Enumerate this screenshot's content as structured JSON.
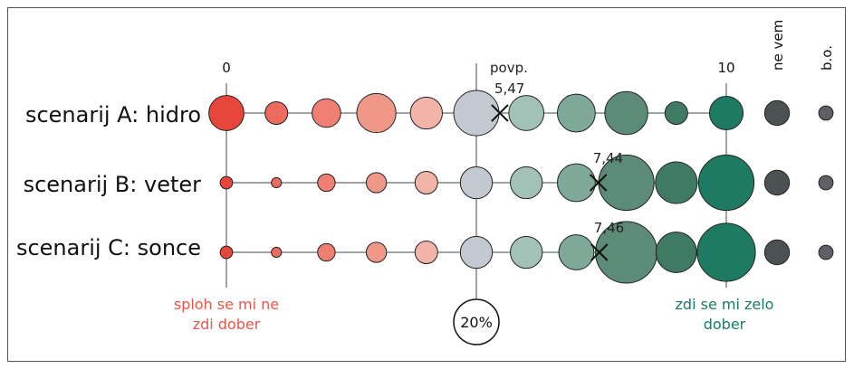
{
  "chart_data": {
    "type": "bubble-matrix",
    "x_scale": {
      "tick_labels": [
        "0",
        "10"
      ],
      "min": 0,
      "max": 10
    },
    "mean_label": "povp.",
    "extra_columns": [
      "ne vem",
      "b.o."
    ],
    "rows": [
      {
        "label": "scenarij A: hidro",
        "mean": 5.47,
        "mean_label": "5,47",
        "shares": [
          12,
          5,
          8,
          15,
          10,
          20,
          12,
          14,
          18,
          5,
          11,
          6,
          2
        ]
      },
      {
        "label": "scenarij B: veter",
        "mean": 7.44,
        "mean_label": "7,44",
        "shares": [
          1.5,
          1,
          3,
          4,
          5,
          10,
          10,
          14,
          30,
          17,
          30,
          6,
          2
        ]
      },
      {
        "label": "scenarij C: sonce",
        "mean": 7.46,
        "mean_label": "7,46",
        "shares": [
          1.5,
          1,
          3,
          4,
          5,
          10,
          10,
          12,
          37,
          16,
          33,
          6,
          2
        ]
      }
    ],
    "bubble_colors": [
      "#e8463b",
      "#ec6a5e",
      "#ee7f72",
      "#f09888",
      "#f3b4a8",
      "#c3c9d0",
      "#a3c2b7",
      "#7ea897",
      "#5c8c78",
      "#3f7a65",
      "#1f7a64",
      "#4c5154",
      "#5d6064"
    ],
    "size_legend": {
      "label": "20%",
      "value": 20
    },
    "left_end_label": [
      "sploh se mi ne",
      "zdi dober"
    ],
    "right_end_label": [
      "zdi se mi zelo",
      "dober"
    ]
  }
}
